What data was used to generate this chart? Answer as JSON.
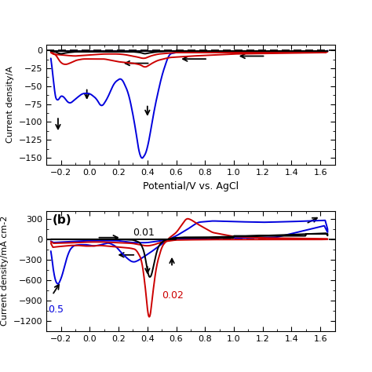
{
  "panel_a": {
    "ylabel": "Current density/A",
    "xlabel": "Potential/V vs. AgCl",
    "xlim": [
      -0.3,
      1.7
    ],
    "ylim": [
      -160,
      8
    ],
    "yticks": [
      0,
      -25,
      -50,
      -75,
      -100,
      -125,
      -150
    ],
    "xticks": [
      -0.2,
      0.0,
      0.2,
      0.4,
      0.6,
      0.8,
      1.0,
      1.2,
      1.4,
      1.6
    ]
  },
  "panel_b": {
    "ylabel": "Current density/mA cm-2",
    "xlim": [
      -0.3,
      1.7
    ],
    "ylim": [
      -1350,
      420
    ],
    "yticks": [
      300,
      0,
      -300,
      -600,
      -900,
      -1200
    ],
    "xticks": [
      -0.2,
      0.0,
      0.2,
      0.4,
      0.6,
      0.8,
      1.0,
      1.2,
      1.4,
      1.6
    ],
    "label_01": "0.01",
    "label_02": "0.02",
    "label_05": "0.5"
  },
  "colors": {
    "black": "#000000",
    "blue": "#0000dd",
    "red": "#cc0000"
  }
}
